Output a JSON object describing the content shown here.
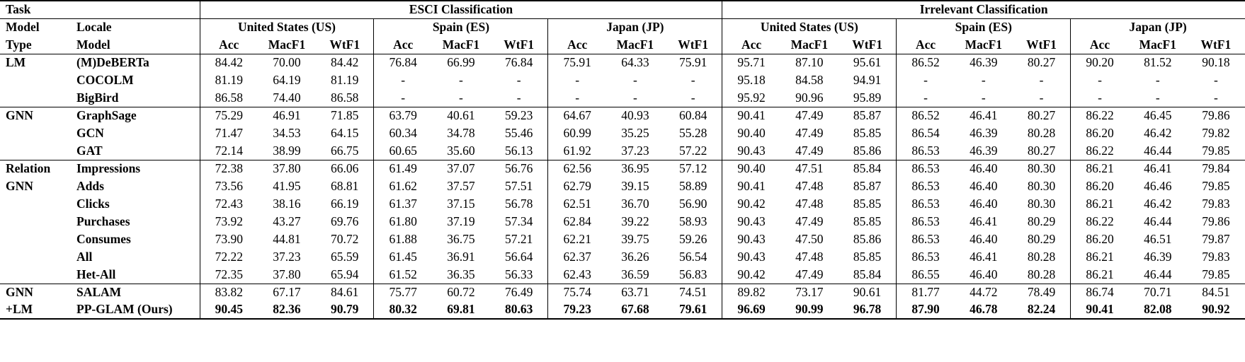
{
  "table": {
    "header": {
      "task_label": "Task",
      "sections": [
        "ESCI Classification",
        "Irrelevant Classification"
      ],
      "row2_col1": "Model",
      "row2_col2": "Locale",
      "row3_col1": "Type",
      "row3_col2": "Model",
      "locales": [
        "United States (US)",
        "Spain (ES)",
        "Japan (JP)"
      ],
      "metrics": [
        "Acc",
        "MacF1",
        "WtF1"
      ]
    },
    "groups": [
      {
        "rows": [
          {
            "type": "LM",
            "model": "(M)DeBERTa",
            "bold": false,
            "values": [
              "84.42",
              "70.00",
              "84.42",
              "76.84",
              "66.99",
              "76.84",
              "75.91",
              "64.33",
              "75.91",
              "95.71",
              "87.10",
              "95.61",
              "86.52",
              "46.39",
              "80.27",
              "90.20",
              "81.52",
              "90.18"
            ]
          },
          {
            "type": "",
            "model": "COCOLM",
            "bold": false,
            "values": [
              "81.19",
              "64.19",
              "81.19",
              "-",
              "-",
              "-",
              "-",
              "-",
              "-",
              "95.18",
              "84.58",
              "94.91",
              "-",
              "-",
              "-",
              "-",
              "-",
              "-"
            ]
          },
          {
            "type": "",
            "model": "BigBird",
            "bold": false,
            "values": [
              "86.58",
              "74.40",
              "86.58",
              "-",
              "-",
              "-",
              "-",
              "-",
              "-",
              "95.92",
              "90.96",
              "95.89",
              "-",
              "-",
              "-",
              "-",
              "-",
              "-"
            ]
          }
        ]
      },
      {
        "rows": [
          {
            "type": "GNN",
            "model": "GraphSage",
            "bold": false,
            "values": [
              "75.29",
              "46.91",
              "71.85",
              "63.79",
              "40.61",
              "59.23",
              "64.67",
              "40.93",
              "60.84",
              "90.41",
              "47.49",
              "85.87",
              "86.52",
              "46.41",
              "80.27",
              "86.22",
              "46.45",
              "79.86"
            ]
          },
          {
            "type": "",
            "model": "GCN",
            "bold": false,
            "values": [
              "71.47",
              "34.53",
              "64.15",
              "60.34",
              "34.78",
              "55.46",
              "60.99",
              "35.25",
              "55.28",
              "90.40",
              "47.49",
              "85.85",
              "86.54",
              "46.39",
              "80.28",
              "86.20",
              "46.42",
              "79.82"
            ]
          },
          {
            "type": "",
            "model": "GAT",
            "bold": false,
            "values": [
              "72.14",
              "38.99",
              "66.75",
              "60.65",
              "35.60",
              "56.13",
              "61.92",
              "37.23",
              "57.22",
              "90.43",
              "47.49",
              "85.86",
              "86.53",
              "46.39",
              "80.27",
              "86.22",
              "46.44",
              "79.85"
            ]
          }
        ]
      },
      {
        "rows": [
          {
            "type": "Relation",
            "model": "Impressions",
            "bold": false,
            "values": [
              "72.38",
              "37.80",
              "66.06",
              "61.49",
              "37.07",
              "56.76",
              "62.56",
              "36.95",
              "57.12",
              "90.40",
              "47.51",
              "85.84",
              "86.53",
              "46.40",
              "80.30",
              "86.21",
              "46.41",
              "79.84"
            ]
          },
          {
            "type": "GNN",
            "model": "Adds",
            "bold": false,
            "values": [
              "73.56",
              "41.95",
              "68.81",
              "61.62",
              "37.57",
              "57.51",
              "62.79",
              "39.15",
              "58.89",
              "90.41",
              "47.48",
              "85.87",
              "86.53",
              "46.40",
              "80.30",
              "86.20",
              "46.46",
              "79.85"
            ]
          },
          {
            "type": "",
            "model": "Clicks",
            "bold": false,
            "values": [
              "72.43",
              "38.16",
              "66.19",
              "61.37",
              "37.15",
              "56.78",
              "62.51",
              "36.70",
              "56.90",
              "90.42",
              "47.48",
              "85.85",
              "86.53",
              "46.40",
              "80.30",
              "86.21",
              "46.42",
              "79.83"
            ]
          },
          {
            "type": "",
            "model": "Purchases",
            "bold": false,
            "values": [
              "73.92",
              "43.27",
              "69.76",
              "61.80",
              "37.19",
              "57.34",
              "62.84",
              "39.22",
              "58.93",
              "90.43",
              "47.49",
              "85.85",
              "86.53",
              "46.41",
              "80.29",
              "86.22",
              "46.44",
              "79.86"
            ]
          },
          {
            "type": "",
            "model": "Consumes",
            "bold": false,
            "values": [
              "73.90",
              "44.81",
              "70.72",
              "61.88",
              "36.75",
              "57.21",
              "62.21",
              "39.75",
              "59.26",
              "90.43",
              "47.50",
              "85.86",
              "86.53",
              "46.40",
              "80.29",
              "86.20",
              "46.51",
              "79.87"
            ]
          },
          {
            "type": "",
            "model": "All",
            "bold": false,
            "values": [
              "72.22",
              "37.23",
              "65.59",
              "61.45",
              "36.91",
              "56.64",
              "62.37",
              "36.26",
              "56.54",
              "90.43",
              "47.48",
              "85.85",
              "86.53",
              "46.41",
              "80.28",
              "86.21",
              "46.39",
              "79.83"
            ]
          },
          {
            "type": "",
            "model": "Het-All",
            "bold": false,
            "values": [
              "72.35",
              "37.80",
              "65.94",
              "61.52",
              "36.35",
              "56.33",
              "62.43",
              "36.59",
              "56.83",
              "90.42",
              "47.49",
              "85.84",
              "86.55",
              "46.40",
              "80.28",
              "86.21",
              "46.44",
              "79.85"
            ]
          }
        ]
      },
      {
        "rows": [
          {
            "type": "GNN",
            "model": "SALAM",
            "bold": false,
            "values": [
              "83.82",
              "67.17",
              "84.61",
              "75.77",
              "60.72",
              "76.49",
              "75.74",
              "63.71",
              "74.51",
              "89.82",
              "73.17",
              "90.61",
              "81.77",
              "44.72",
              "78.49",
              "86.74",
              "70.71",
              "84.51"
            ]
          },
          {
            "type": "+LM",
            "model": "PP-GLAM (Ours)",
            "bold": true,
            "values": [
              "90.45",
              "82.36",
              "90.79",
              "80.32",
              "69.81",
              "80.63",
              "79.23",
              "67.68",
              "79.61",
              "96.69",
              "90.99",
              "96.78",
              "87.90",
              "46.78",
              "82.24",
              "90.41",
              "82.08",
              "90.92"
            ]
          }
        ]
      }
    ]
  }
}
